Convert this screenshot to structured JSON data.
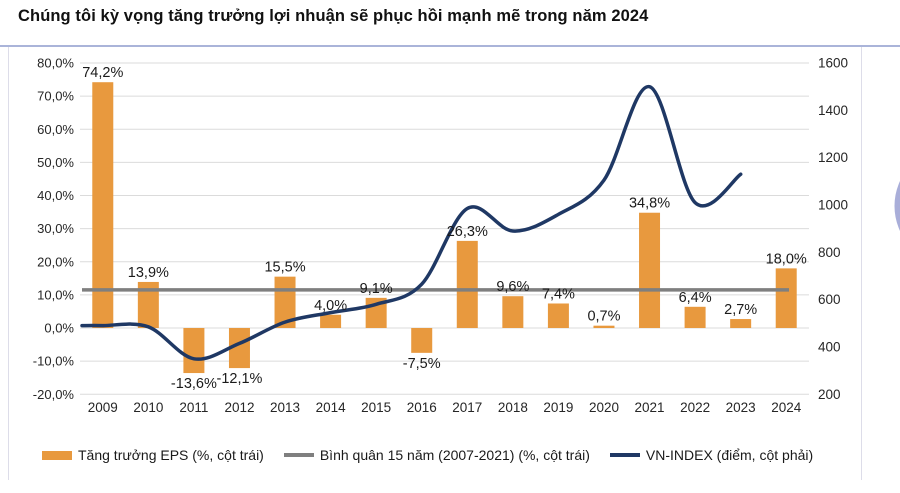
{
  "title": "Chúng tôi kỳ vọng tăng trưởng lợi nhuận sẽ phục hồi mạnh mẽ trong năm 2024",
  "colors": {
    "bar": "#E8993E",
    "avg_line": "#7F7F7F",
    "index_line": "#1F3864",
    "grid": "#DBDBDB",
    "axis_text": "#262626",
    "label_text": "#1A1A1A",
    "accent_rule": "#AAB4D9",
    "side_rule": "#DDDDE9",
    "deco_arc": "#9AA0D2"
  },
  "axes": {
    "left_ticks": [
      "80,0%",
      "70,0%",
      "60,0%",
      "50,0%",
      "40,0%",
      "30,0%",
      "20,0%",
      "10,0%",
      "0,0%",
      "-10,0%",
      "-20,0%"
    ],
    "right_ticks": [
      "1600",
      "1400",
      "1200",
      "1000",
      "800",
      "600",
      "400",
      "200"
    ]
  },
  "chart_data": {
    "type": "bar+line combo",
    "title": "Chúng tôi kỳ vọng tăng trưởng lợi nhuận sẽ phục hồi mạnh mẽ trong năm 2024",
    "categories": [
      "2009",
      "2010",
      "2011",
      "2012",
      "2013",
      "2014",
      "2015",
      "2016",
      "2017",
      "2018",
      "2019",
      "2020",
      "2021",
      "2022",
      "2023",
      "2024"
    ],
    "left_axis": {
      "unit": "%",
      "range": [
        -20,
        80
      ],
      "tick_step": 10
    },
    "right_axis": {
      "unit": "điểm",
      "range": [
        200,
        1600
      ],
      "tick_step": 200
    },
    "grid": true,
    "legend_position": "bottom",
    "series": [
      {
        "name": "Tăng trưởng EPS (%, cột trái)",
        "type": "bar",
        "axis": "left",
        "values": [
          74.2,
          13.9,
          -13.6,
          -12.1,
          15.5,
          4.0,
          9.1,
          -7.5,
          26.3,
          9.6,
          7.4,
          0.7,
          34.8,
          6.4,
          2.7,
          18.0
        ],
        "labels": [
          "74,2%",
          "13,9%",
          "-13,6%",
          "-12,1%",
          "15,5%",
          "4,0%",
          "9,1%",
          "-7,5%",
          "26,3%",
          "9,6%",
          "7,4%",
          "0,7%",
          "34,8%",
          "6,4%",
          "2,7%",
          "18,0%"
        ]
      },
      {
        "name": "Bình quân 15 năm (2007-2021) (%, cột trái)",
        "type": "line",
        "axis": "left",
        "constant_value": 11.5
      },
      {
        "name": "VN-INDEX (điểm, cột phải)",
        "type": "line",
        "axis": "right",
        "smooth": true,
        "values": [
          490,
          485,
          350,
          415,
          505,
          545,
          580,
          665,
          985,
          890,
          960,
          1105,
          1500,
          1010,
          1130,
          null
        ]
      }
    ]
  },
  "legend": [
    {
      "label": "Tăng trưởng EPS (%, cột trái)",
      "swatch": "bar"
    },
    {
      "label": "Bình quân 15 năm (2007-2021) (%, cột trái)",
      "swatch": "line-gray"
    },
    {
      "label": "VN-INDEX (điểm, cột phải)",
      "swatch": "line-navy"
    }
  ]
}
